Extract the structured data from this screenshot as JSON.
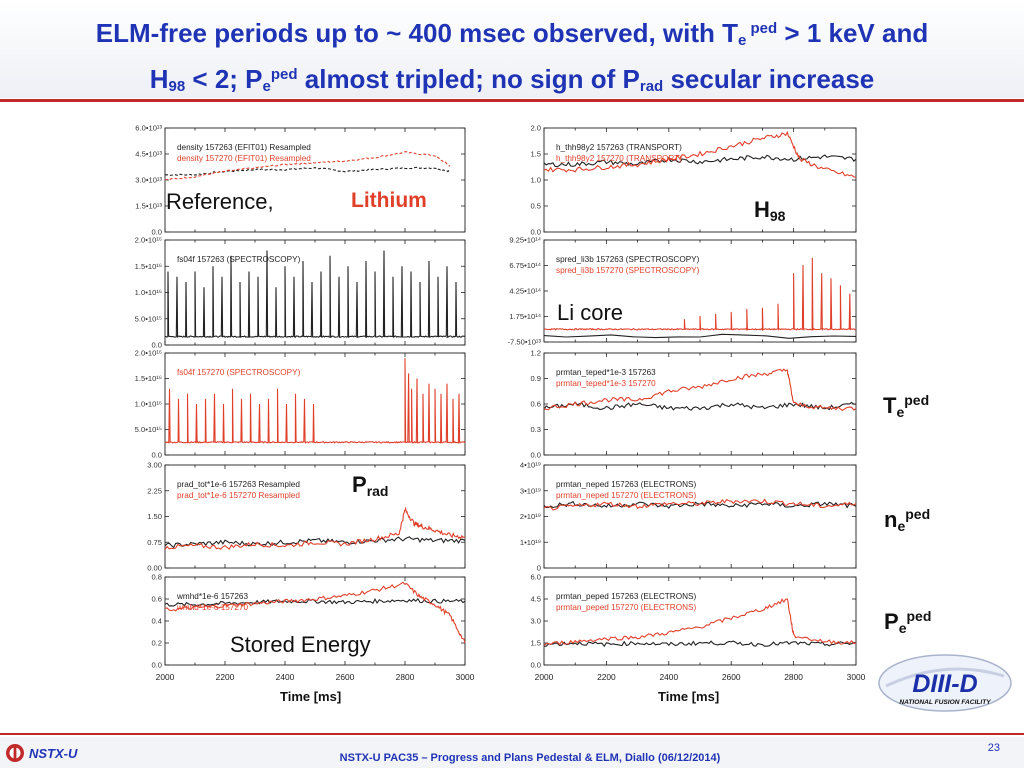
{
  "slide": {
    "title_line1": {
      "a": "ELM-free periods up to ~ 400 msec observed, with T",
      "sub": "e",
      "sup": " ped",
      "b": " > 1 keV and"
    },
    "title_line2": {
      "a": "H",
      "sub1": "98",
      "b": " < 2; P",
      "sub2": "e",
      "sup": "ped",
      "c": " almost tripled; no sign of P",
      "sub3": "rad",
      "d": " secular increase"
    },
    "footer_text": "NSTX-U PAC35 – Progress and Plans Pedestal & ELM,  Diallo  (06/12/2014)",
    "page_number": "23",
    "nstxu_logo_text": "NSTX-U",
    "diiid_logo_text": "DIII-D",
    "diiid_logo_subtext": "NATIONAL FUSION FACILITY"
  },
  "annotations": {
    "reference": "Reference,",
    "lithium": "Lithium",
    "h98": {
      "base": "H",
      "sub": "98"
    },
    "li_core": "Li core",
    "prad": {
      "base": "P",
      "sub": "rad"
    },
    "stored_energy": "Stored Energy",
    "te_ped": {
      "base": "T",
      "sub": "e",
      "sup": "ped"
    },
    "ne_ped": {
      "base": "n",
      "sub": "e",
      "sup": "ped"
    },
    "pe_ped": {
      "base": "P",
      "sub": "e",
      "sup": "ped"
    },
    "time_left": "Time [ms]",
    "time_right": "Time [ms]"
  },
  "colors": {
    "title": "#1f33b5",
    "reference": "#222222",
    "lithium": "#e0402a",
    "rule": "#c22a2a"
  },
  "chart_data": [
    {
      "type": "line",
      "ylim": [
        0,
        60000000000000.0
      ],
      "yticks": [
        "0.0",
        "1.5•10¹³",
        "3.0•10¹³",
        "4.5•10¹³",
        "6.0•10¹³"
      ],
      "xlim": [
        2000,
        3000
      ],
      "series": [
        {
          "name": "density  157263 (EFIT01) Resampled",
          "color": "black",
          "dash": "3,2",
          "x": [
            2000,
            2100,
            2200,
            2300,
            2400,
            2500,
            2600,
            2700,
            2800,
            2900,
            2950
          ],
          "y": [
            33000000000000.0,
            33000000000000.0,
            35000000000000.0,
            36000000000000.0,
            36000000000000.0,
            37000000000000.0,
            35000000000000.0,
            36000000000000.0,
            37000000000000.0,
            37000000000000.0,
            35000000000000.0
          ]
        },
        {
          "name": "density  157270 (EFIT01) Resampled",
          "color": "red",
          "dash": "3,2",
          "x": [
            2000,
            2100,
            2200,
            2300,
            2400,
            2500,
            2600,
            2700,
            2800,
            2900,
            2950
          ],
          "y": [
            30000000000000.0,
            32000000000000.0,
            35000000000000.0,
            37000000000000.0,
            39000000000000.0,
            40000000000000.0,
            41000000000000.0,
            43000000000000.0,
            46000000000000.0,
            44000000000000.0,
            38000000000000.0
          ]
        }
      ]
    },
    {
      "type": "line",
      "ylim": [
        0,
        2e+16
      ],
      "yticks": [
        "0.0",
        "5.0•10¹⁵",
        "1.0•10¹⁶",
        "1.5•10¹⁶",
        "2.0•10¹⁶"
      ],
      "xlim": [
        2000,
        3000
      ],
      "series": [
        {
          "name": "fs04f  157263 (SPECTROSCOPY)",
          "color": "black",
          "kind": "elm",
          "base": 1600000000000000.0,
          "peaks": [
            2010,
            2040,
            2070,
            2100,
            2130,
            2160,
            2190,
            2220,
            2250,
            2280,
            2310,
            2340,
            2370,
            2400,
            2430,
            2460,
            2490,
            2520,
            2550,
            2580,
            2610,
            2640,
            2670,
            2700,
            2730,
            2760,
            2790,
            2820,
            2850,
            2880,
            2910,
            2940,
            2970
          ],
          "peakvals": [
            1.4e+16,
            1.3e+16,
            1.2e+16,
            1.4e+16,
            1.1e+16,
            1.5e+16,
            1.3e+16,
            1.7e+16,
            1.2e+16,
            1.4e+16,
            1.3e+16,
            1.8e+16,
            1.1e+16,
            1.5e+16,
            1.3e+16,
            1.6e+16,
            1.2e+16,
            1.4e+16,
            1.7e+16,
            1.3e+16,
            1.5e+16,
            1.2e+16,
            1.6e+16,
            1.4e+16,
            1.8e+16,
            1.3e+16,
            1.5e+16,
            1.4e+16,
            1.2e+16,
            1.6e+16,
            1.3e+16,
            1.5e+16,
            1.2e+16
          ]
        }
      ]
    },
    {
      "type": "line",
      "ylim": [
        0,
        2e+16
      ],
      "yticks": [
        "0.0",
        "5.0•10¹⁵",
        "1.0•10¹⁶",
        "1.5•10¹⁶",
        "2.0•10¹⁶"
      ],
      "xlim": [
        2000,
        3000
      ],
      "series": [
        {
          "name": "fs04f  157270 (SPECTROSCOPY)",
          "color": "red",
          "kind": "elm",
          "base": 2500000000000000.0,
          "peaks": [
            2015,
            2045,
            2075,
            2105,
            2135,
            2165,
            2195,
            2225,
            2255,
            2285,
            2315,
            2345,
            2375,
            2405,
            2435,
            2465,
            2495,
            2800,
            2812,
            2822,
            2840,
            2860,
            2880,
            2900,
            2920,
            2940,
            2960,
            2980
          ],
          "peakvals": [
            1.3e+16,
            1.1e+16,
            1.2e+16,
            1e+16,
            1.1e+16,
            1.2e+16,
            1e+16,
            1.3e+16,
            1.1e+16,
            1.2e+16,
            1e+16,
            1.1e+16,
            1.3e+16,
            1e+16,
            1.2e+16,
            1.1e+16,
            1e+16,
            1.9e+16,
            1.6e+16,
            1.3e+16,
            1.5e+16,
            1.2e+16,
            1.4e+16,
            1.3e+16,
            1.2e+16,
            1.4e+16,
            1.1e+16,
            1.2e+16
          ]
        }
      ]
    },
    {
      "type": "line",
      "ylim": [
        0,
        3.0
      ],
      "yticks": [
        "0.00",
        "0.75",
        "1.50",
        "2.25",
        "3.00"
      ],
      "xlim": [
        2000,
        3000
      ],
      "series": [
        {
          "name": "prad_tot*1e-6  157263 Resampled",
          "color": "black",
          "x": [
            2000,
            2100,
            2200,
            2300,
            2400,
            2500,
            2600,
            2700,
            2800,
            2900,
            3000
          ],
          "y": [
            0.65,
            0.7,
            0.75,
            0.7,
            0.75,
            0.8,
            0.75,
            0.8,
            0.85,
            0.8,
            0.8
          ]
        },
        {
          "name": "prad_tot*1e-6  157270 Resampled",
          "color": "red",
          "x": [
            2000,
            2100,
            2200,
            2300,
            2400,
            2500,
            2600,
            2700,
            2780,
            2800,
            2830,
            2860,
            2900,
            2950,
            3000
          ],
          "y": [
            0.6,
            0.65,
            0.6,
            0.7,
            0.65,
            0.75,
            0.7,
            0.85,
            1.0,
            1.7,
            1.3,
            1.2,
            1.1,
            0.95,
            0.9
          ]
        }
      ]
    },
    {
      "type": "line",
      "ylim": [
        0,
        0.8
      ],
      "yticks": [
        "0.0",
        "0.2",
        "0.4",
        "0.6",
        "0.8"
      ],
      "xlim": [
        2000,
        3000
      ],
      "series": [
        {
          "name": "wmhd*1e-6  157263",
          "color": "black",
          "x": [
            2000,
            2100,
            2200,
            2300,
            2400,
            2500,
            2600,
            2700,
            2800,
            2900,
            3000
          ],
          "y": [
            0.55,
            0.55,
            0.56,
            0.57,
            0.58,
            0.58,
            0.57,
            0.58,
            0.59,
            0.58,
            0.58
          ]
        },
        {
          "name": "wmhd*1e-6  157270",
          "color": "red",
          "x": [
            2000,
            2100,
            2200,
            2300,
            2400,
            2500,
            2600,
            2700,
            2800,
            2850,
            2900,
            2950,
            3000
          ],
          "y": [
            0.5,
            0.52,
            0.54,
            0.56,
            0.58,
            0.6,
            0.63,
            0.68,
            0.74,
            0.62,
            0.55,
            0.45,
            0.2
          ]
        }
      ]
    },
    {
      "type": "line",
      "ylim": [
        0,
        2.0
      ],
      "yticks": [
        "0.0",
        "0.5",
        "1.0",
        "1.5",
        "2.0"
      ],
      "xlim": [
        2000,
        3000
      ],
      "series": [
        {
          "name": "h_thh98y2  157263 (TRANSPORT)",
          "color": "black",
          "x": [
            2000,
            2100,
            2200,
            2300,
            2400,
            2500,
            2600,
            2700,
            2800,
            2900,
            3000
          ],
          "y": [
            1.3,
            1.3,
            1.35,
            1.3,
            1.4,
            1.35,
            1.4,
            1.45,
            1.4,
            1.45,
            1.4
          ]
        },
        {
          "name": "h_thh98y2  157270 (TRANSPORT)",
          "color": "red",
          "x": [
            2000,
            2100,
            2200,
            2300,
            2400,
            2500,
            2600,
            2700,
            2780,
            2820,
            2900,
            3000
          ],
          "y": [
            1.2,
            1.2,
            1.25,
            1.3,
            1.4,
            1.5,
            1.65,
            1.8,
            1.9,
            1.4,
            1.2,
            1.05
          ]
        }
      ]
    },
    {
      "type": "line",
      "ylim": [
        -75000000000000.0,
        925000000000000.0
      ],
      "yticks": [
        "-7.50•10¹³",
        "1.75•10¹⁴",
        "4.25•10¹⁴",
        "6.75•10¹⁴",
        "9.25•10¹⁴"
      ],
      "xlim": [
        2000,
        3000
      ],
      "series": [
        {
          "name": "spred_li3b  157263 (SPECTROSCOPY)",
          "color": "black",
          "x": [
            2000,
            3000
          ],
          "y": [
            -20000000000000.0,
            -20000000000000.0
          ]
        },
        {
          "name": "spred_li3b  157270 (SPECTROSCOPY)",
          "color": "red",
          "kind": "elm",
          "base": 50000000000000.0,
          "peaks": [
            2450,
            2500,
            2550,
            2600,
            2650,
            2700,
            2750,
            2800,
            2830,
            2860,
            2890,
            2920,
            2950,
            2980
          ],
          "peakvals": [
            150000000000000.0,
            180000000000000.0,
            200000000000000.0,
            220000000000000.0,
            250000000000000.0,
            260000000000000.0,
            300000000000000.0,
            600000000000000.0,
            680000000000000.0,
            750000000000000.0,
            600000000000000.0,
            550000000000000.0,
            480000000000000.0,
            400000000000000.0
          ]
        }
      ]
    },
    {
      "type": "line",
      "ylim": [
        0,
        1.2
      ],
      "yticks": [
        "0.0",
        "0.3",
        "0.6",
        "0.9",
        "1.2"
      ],
      "xlim": [
        2000,
        3000
      ],
      "series": [
        {
          "name": "prmtan_teped*1e-3  157263",
          "color": "black",
          "x": [
            2000,
            2100,
            2200,
            2300,
            2400,
            2500,
            2600,
            2700,
            2800,
            2900,
            3000
          ],
          "y": [
            0.55,
            0.6,
            0.55,
            0.6,
            0.55,
            0.55,
            0.6,
            0.55,
            0.6,
            0.55,
            0.6
          ]
        },
        {
          "name": "prmtan_teped*1e-3  157270",
          "color": "red",
          "x": [
            2000,
            2100,
            2200,
            2300,
            2400,
            2500,
            2600,
            2700,
            2780,
            2800,
            2900,
            3000
          ],
          "y": [
            0.55,
            0.6,
            0.65,
            0.65,
            0.75,
            0.8,
            0.9,
            0.95,
            1.0,
            0.6,
            0.55,
            0.55
          ]
        }
      ]
    },
    {
      "type": "line",
      "ylim": [
        0,
        4e+19
      ],
      "yticks": [
        "0",
        "1•10¹⁹",
        "2•10¹⁹",
        "3•10¹⁹",
        "4•10¹⁹"
      ],
      "xlim": [
        2000,
        3000
      ],
      "series": [
        {
          "name": "prmtan_neped  157263 (ELECTRONS)",
          "color": "black",
          "x": [
            2000,
            2100,
            2200,
            2300,
            2400,
            2500,
            2600,
            2700,
            2800,
            2900,
            3000
          ],
          "y": [
            2.4e+19,
            2.5e+19,
            2.4e+19,
            2.5e+19,
            2.4e+19,
            2.5e+19,
            2.4e+19,
            2.5e+19,
            2.4e+19,
            2.5e+19,
            2.4e+19
          ]
        },
        {
          "name": "prmtan_neped  157270 (ELECTRONS)",
          "color": "red",
          "x": [
            2000,
            2100,
            2200,
            2300,
            2400,
            2500,
            2600,
            2700,
            2800,
            2900,
            3000
          ],
          "y": [
            2.3e+19,
            2.4e+19,
            2.5e+19,
            2.4e+19,
            2.5e+19,
            2.5e+19,
            2.6e+19,
            2.6e+19,
            2.5e+19,
            2.4e+19,
            2.5e+19
          ]
        }
      ]
    },
    {
      "type": "line",
      "ylim": [
        0,
        6.0
      ],
      "yticks": [
        "0.0",
        "1.5",
        "3.0",
        "4.5",
        "6.0"
      ],
      "xlim": [
        2000,
        3000
      ],
      "series": [
        {
          "name": "prmtan_peped  157263 (ELECTRONS)",
          "color": "black",
          "x": [
            2000,
            2100,
            2200,
            2300,
            2400,
            2500,
            2600,
            2700,
            2800,
            2900,
            3000
          ],
          "y": [
            1.4,
            1.5,
            1.4,
            1.5,
            1.4,
            1.5,
            1.5,
            1.4,
            1.5,
            1.4,
            1.5
          ]
        },
        {
          "name": "prmtan_peped  157270 (ELECTRONS)",
          "color": "red",
          "x": [
            2000,
            2100,
            2200,
            2300,
            2400,
            2500,
            2600,
            2700,
            2780,
            2800,
            2900,
            3000
          ],
          "y": [
            1.4,
            1.6,
            1.8,
            1.9,
            2.2,
            2.6,
            3.2,
            3.8,
            4.5,
            2.0,
            1.6,
            1.5
          ]
        }
      ]
    }
  ],
  "x_ticks_left": [
    "2000",
    "2200",
    "2400",
    "2600",
    "2800",
    "3000"
  ],
  "x_ticks_right": [
    "2000",
    "2200",
    "2400",
    "2600",
    "2800",
    "3000"
  ]
}
